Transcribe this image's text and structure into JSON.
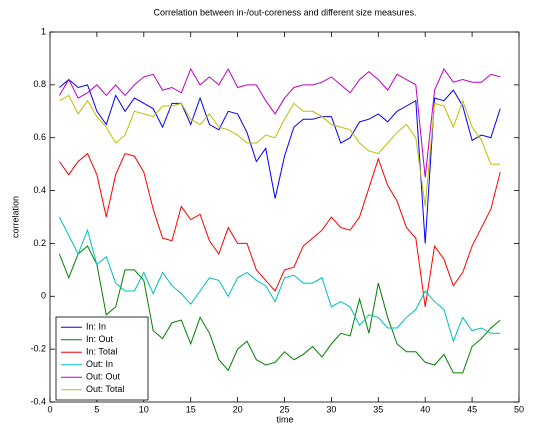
{
  "chart_data": {
    "type": "line",
    "title": "Correlation between in-/out-coreness and different size measures.",
    "x_label": "time",
    "y_label": "correlation",
    "x": [
      1,
      2,
      3,
      4,
      5,
      6,
      7,
      8,
      9,
      10,
      11,
      12,
      13,
      14,
      15,
      16,
      17,
      18,
      19,
      20,
      21,
      22,
      23,
      24,
      25,
      26,
      27,
      28,
      29,
      30,
      31,
      32,
      33,
      34,
      35,
      36,
      37,
      38,
      39,
      40,
      41,
      42,
      43,
      44,
      45,
      46,
      47,
      48
    ],
    "series": [
      {
        "name": "In: In",
        "color": "#0000ff",
        "values": [
          0.79,
          0.82,
          0.79,
          0.8,
          0.7,
          0.65,
          0.76,
          0.7,
          0.75,
          0.73,
          0.71,
          0.64,
          0.73,
          0.73,
          0.65,
          0.75,
          0.65,
          0.63,
          0.7,
          0.69,
          0.62,
          0.51,
          0.56,
          0.37,
          0.53,
          0.64,
          0.67,
          0.67,
          0.68,
          0.68,
          0.58,
          0.6,
          0.66,
          0.67,
          0.69,
          0.66,
          0.7,
          0.72,
          0.74,
          0.2,
          0.75,
          0.74,
          0.78,
          0.72,
          0.59,
          0.61,
          0.6,
          0.71
        ]
      },
      {
        "name": "In: Out",
        "color": "#008000",
        "values": [
          0.16,
          0.07,
          0.16,
          0.19,
          0.12,
          -0.07,
          -0.04,
          0.1,
          0.1,
          0.06,
          -0.13,
          -0.16,
          -0.1,
          -0.09,
          -0.18,
          -0.08,
          -0.14,
          -0.24,
          -0.28,
          -0.2,
          -0.17,
          -0.24,
          -0.26,
          -0.25,
          -0.21,
          -0.24,
          -0.22,
          -0.19,
          -0.23,
          -0.18,
          -0.14,
          -0.15,
          -0.01,
          -0.14,
          0.05,
          -0.08,
          -0.18,
          -0.21,
          -0.21,
          -0.25,
          -0.26,
          -0.22,
          -0.29,
          -0.29,
          -0.19,
          -0.16,
          -0.12,
          -0.09
        ]
      },
      {
        "name": "In: Total",
        "color": "#ff0000",
        "values": [
          0.51,
          0.46,
          0.51,
          0.54,
          0.46,
          0.3,
          0.46,
          0.54,
          0.53,
          0.47,
          0.33,
          0.22,
          0.21,
          0.34,
          0.29,
          0.31,
          0.21,
          0.16,
          0.26,
          0.2,
          0.2,
          0.1,
          0.06,
          0.02,
          0.1,
          0.11,
          0.19,
          0.22,
          0.25,
          0.3,
          0.26,
          0.25,
          0.3,
          0.41,
          0.52,
          0.42,
          0.36,
          0.26,
          0.22,
          -0.04,
          0.19,
          0.14,
          0.04,
          0.09,
          0.19,
          0.26,
          0.33,
          0.47
        ]
      },
      {
        "name": "Out: In",
        "color": "#00bfbf",
        "values": [
          0.3,
          0.23,
          0.16,
          0.25,
          0.12,
          0.15,
          0.05,
          0.02,
          0.02,
          0.09,
          0.01,
          0.09,
          0.04,
          0.01,
          -0.03,
          0.02,
          0.07,
          0.06,
          0.0,
          0.07,
          0.09,
          0.06,
          0.04,
          -0.02,
          0.07,
          0.08,
          0.05,
          0.05,
          0.07,
          -0.04,
          -0.02,
          -0.04,
          -0.11,
          -0.07,
          -0.08,
          -0.12,
          -0.12,
          -0.08,
          -0.05,
          0.02,
          -0.02,
          -0.05,
          -0.17,
          -0.08,
          -0.13,
          -0.12,
          -0.14,
          -0.14
        ]
      },
      {
        "name": "Out: Out",
        "color": "#bf00bf",
        "values": [
          0.76,
          0.82,
          0.75,
          0.77,
          0.8,
          0.76,
          0.8,
          0.76,
          0.8,
          0.83,
          0.84,
          0.78,
          0.79,
          0.77,
          0.86,
          0.8,
          0.83,
          0.8,
          0.86,
          0.79,
          0.8,
          0.8,
          0.74,
          0.69,
          0.75,
          0.79,
          0.8,
          0.8,
          0.81,
          0.83,
          0.8,
          0.77,
          0.82,
          0.85,
          0.82,
          0.78,
          0.84,
          0.82,
          0.8,
          0.45,
          0.78,
          0.86,
          0.81,
          0.82,
          0.81,
          0.81,
          0.84,
          0.83
        ]
      },
      {
        "name": "Out: Total",
        "color": "#bfbf00",
        "values": [
          0.74,
          0.76,
          0.69,
          0.74,
          0.68,
          0.64,
          0.58,
          0.61,
          0.7,
          0.69,
          0.68,
          0.72,
          0.72,
          0.73,
          0.67,
          0.65,
          0.69,
          0.64,
          0.63,
          0.61,
          0.58,
          0.58,
          0.61,
          0.6,
          0.67,
          0.73,
          0.7,
          0.7,
          0.68,
          0.65,
          0.64,
          0.63,
          0.58,
          0.55,
          0.54,
          0.58,
          0.62,
          0.65,
          0.6,
          0.34,
          0.73,
          0.72,
          0.64,
          0.74,
          0.64,
          0.59,
          0.5,
          0.5
        ]
      }
    ],
    "xlim": [
      0,
      50
    ],
    "xticks": [
      0,
      5,
      10,
      15,
      20,
      25,
      30,
      35,
      40,
      45,
      50
    ],
    "ylim": [
      -0.4,
      1
    ],
    "yticks": [
      -0.4,
      -0.2,
      0,
      0.2,
      0.4,
      0.6,
      0.8,
      1
    ],
    "grid": false,
    "legend_position": "lower left"
  }
}
